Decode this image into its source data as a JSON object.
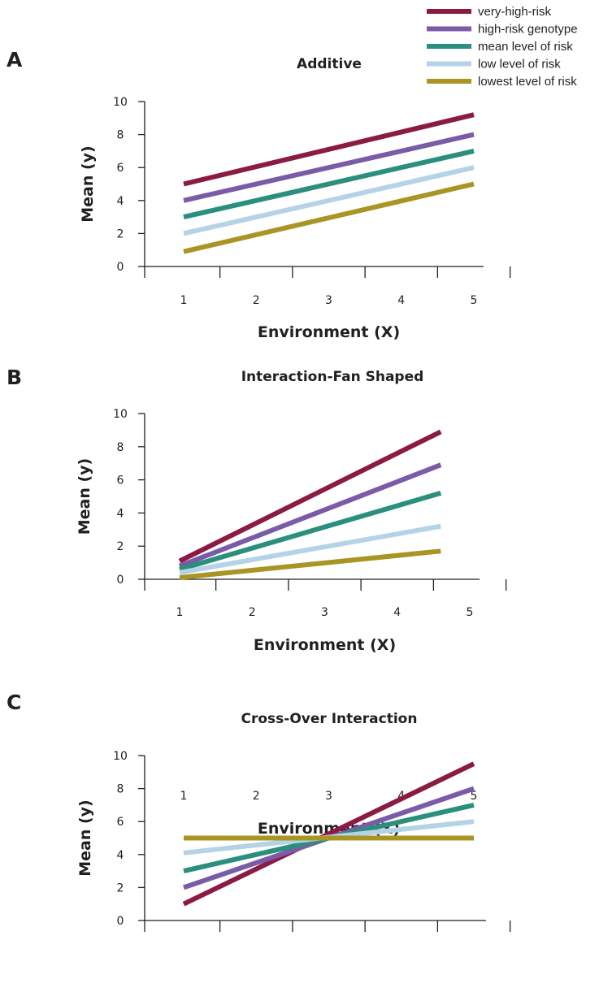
{
  "legend": [
    {
      "label": "very-high-risk",
      "color": "#8b1a45"
    },
    {
      "label": "high-risk genotype",
      "color": "#7a5ba8"
    },
    {
      "label": "mean level of risk",
      "color": "#2a8f7c"
    },
    {
      "label": "low level of risk",
      "color": "#b5d3e6"
    },
    {
      "label": "lowest level of risk",
      "color": "#a89524"
    }
  ],
  "chart_data": [
    {
      "panel_letter": "A",
      "type": "line",
      "title": "Additive",
      "xlabel": "Environment (X)",
      "ylabel": "Mean (y)",
      "xlim": [
        0.5,
        5.1
      ],
      "ylim": [
        0,
        10
      ],
      "xticks": [
        1,
        2,
        3,
        4,
        5
      ],
      "yticks": [
        0,
        2,
        4,
        6,
        8,
        10
      ],
      "series": [
        {
          "name": "very-high-risk",
          "x": [
            1,
            5
          ],
          "y": [
            5,
            9.2
          ]
        },
        {
          "name": "high-risk genotype",
          "x": [
            1,
            5
          ],
          "y": [
            4,
            8
          ]
        },
        {
          "name": "mean level of risk",
          "x": [
            1,
            5
          ],
          "y": [
            3,
            7
          ]
        },
        {
          "name": "low level of risk",
          "x": [
            1,
            5
          ],
          "y": [
            2,
            6
          ]
        },
        {
          "name": "lowest level of risk",
          "x": [
            1,
            5
          ],
          "y": [
            0.9,
            5
          ]
        }
      ]
    },
    {
      "panel_letter": "B",
      "type": "line",
      "title": "Interaction-Fan Shaped",
      "xlabel": "Environment (X)",
      "ylabel": "Mean (y)",
      "xlim": [
        0.5,
        5.1
      ],
      "ylim": [
        0,
        10
      ],
      "xticks": [
        1,
        2,
        3,
        4,
        5
      ],
      "yticks": [
        0,
        2,
        4,
        6,
        8,
        10
      ],
      "series": [
        {
          "name": "very-high-risk",
          "x": [
            1,
            4.6
          ],
          "y": [
            1.1,
            8.9
          ]
        },
        {
          "name": "high-risk genotype",
          "x": [
            1,
            4.6
          ],
          "y": [
            0.8,
            6.9
          ]
        },
        {
          "name": "mean level of risk",
          "x": [
            1,
            4.6
          ],
          "y": [
            0.6,
            5.2
          ]
        },
        {
          "name": "low level of risk",
          "x": [
            1,
            4.6
          ],
          "y": [
            0.4,
            3.2
          ]
        },
        {
          "name": "lowest level of risk",
          "x": [
            1,
            4.6
          ],
          "y": [
            0.1,
            1.7
          ]
        }
      ]
    },
    {
      "panel_letter": "C",
      "type": "line",
      "title": "Cross-Over Interaction",
      "xlabel": "Environment (X)",
      "ylabel": "Mean (y)",
      "xlim": [
        0.5,
        5.1
      ],
      "ylim": [
        0,
        10
      ],
      "xticks": [
        1,
        2,
        3,
        4,
        5
      ],
      "yticks": [
        0,
        2,
        4,
        6,
        8,
        10
      ],
      "series": [
        {
          "name": "very-high-risk",
          "x": [
            1,
            5
          ],
          "y": [
            1,
            9.5
          ]
        },
        {
          "name": "high-risk genotype",
          "x": [
            1,
            5
          ],
          "y": [
            2,
            8
          ]
        },
        {
          "name": "mean level of risk",
          "x": [
            1,
            5
          ],
          "y": [
            3,
            7
          ]
        },
        {
          "name": "low level of risk",
          "x": [
            1,
            5
          ],
          "y": [
            4.1,
            6
          ]
        },
        {
          "name": "lowest level of risk",
          "x": [
            1,
            5
          ],
          "y": [
            5,
            5
          ]
        }
      ]
    }
  ]
}
